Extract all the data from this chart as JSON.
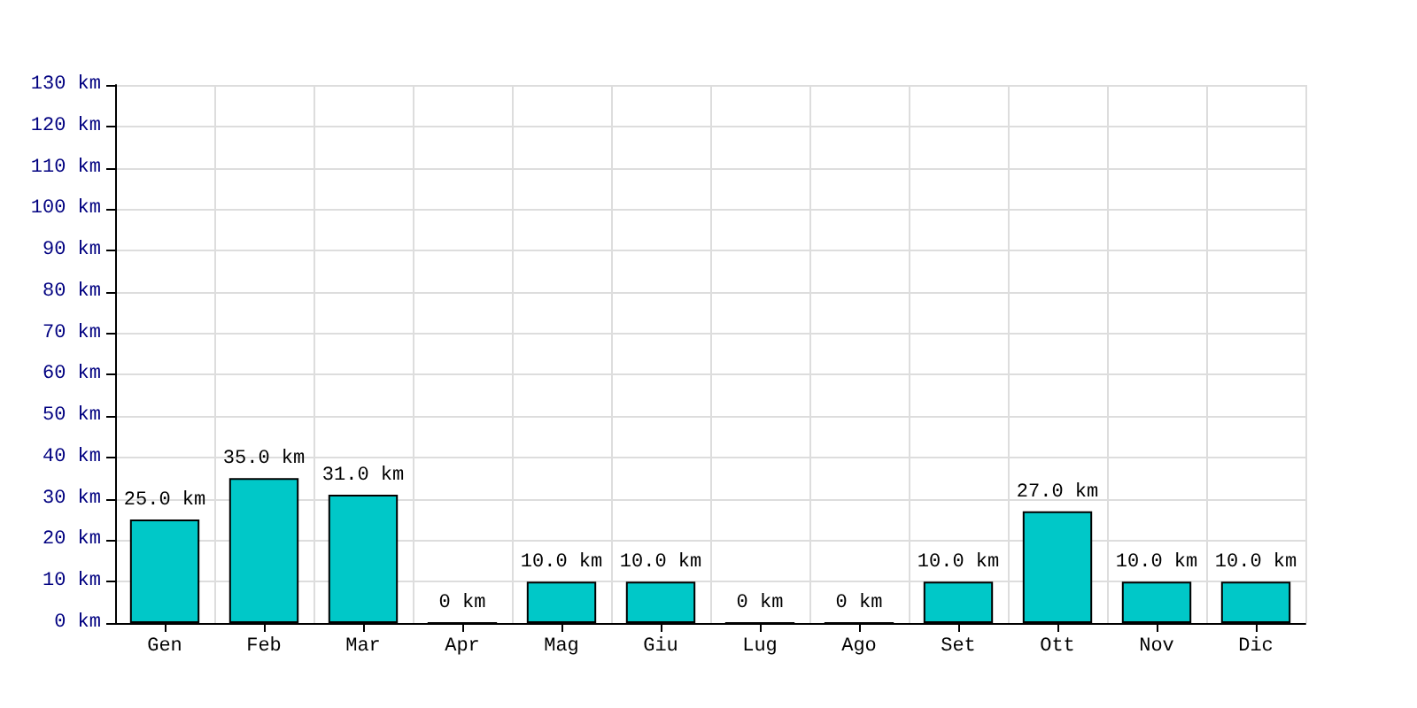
{
  "chart_data": {
    "type": "bar",
    "categories": [
      "Gen",
      "Feb",
      "Mar",
      "Apr",
      "Mag",
      "Giu",
      "Lug",
      "Ago",
      "Set",
      "Ott",
      "Nov",
      "Dic"
    ],
    "values": [
      25,
      35,
      31,
      0,
      10,
      10,
      0,
      0,
      10,
      27,
      10,
      10
    ],
    "value_labels": [
      "25.0 km",
      "35.0 km",
      "31.0 km",
      "0 km",
      "10.0 km",
      "10.0 km",
      "0 km",
      "0 km",
      "10.0 km",
      "27.0 km",
      "10.0 km",
      "10.0 km"
    ],
    "color": "#00c8c8",
    "ylim": [
      0,
      130
    ],
    "yticks": [
      {
        "value": 0,
        "label": "0 km"
      },
      {
        "value": 10,
        "label": "10 km"
      },
      {
        "value": 20,
        "label": "20 km"
      },
      {
        "value": 30,
        "label": "30 km"
      },
      {
        "value": 40,
        "label": "40 km"
      },
      {
        "value": 50,
        "label": "50 km"
      },
      {
        "value": 60,
        "label": "60 km"
      },
      {
        "value": 70,
        "label": "70 km"
      },
      {
        "value": 80,
        "label": "80 km"
      },
      {
        "value": 90,
        "label": "90 km"
      },
      {
        "value": 100,
        "label": "100 km"
      },
      {
        "value": 110,
        "label": "110 km"
      },
      {
        "value": 120,
        "label": "120 km"
      },
      {
        "value": 130,
        "label": "130 km"
      }
    ],
    "grid": true
  }
}
